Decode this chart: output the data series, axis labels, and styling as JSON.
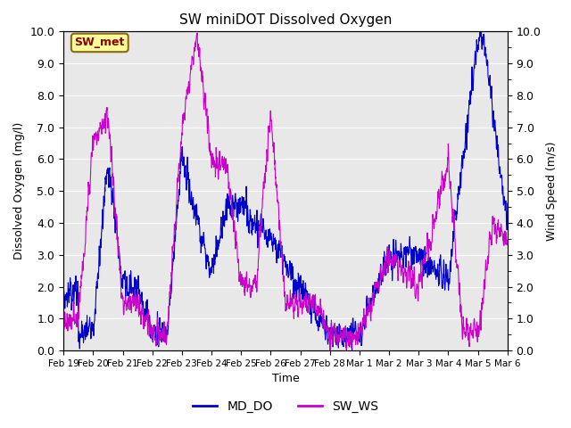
{
  "title": "SW miniDOT Dissolved Oxygen",
  "xlabel": "Time",
  "ylabel_left": "Dissolved Oxygen (mg/l)",
  "ylabel_right": "Wind Speed (m/s)",
  "ylim": [
    0.0,
    10.0
  ],
  "yticks": [
    0.0,
    1.0,
    2.0,
    3.0,
    4.0,
    5.0,
    6.0,
    7.0,
    8.0,
    9.0,
    10.0
  ],
  "xtick_labels": [
    "Feb 19",
    "Feb 20",
    "Feb 21",
    "Feb 22",
    "Feb 23",
    "Feb 24",
    "Feb 25",
    "Feb 26",
    "Feb 27",
    "Feb 28",
    "Mar 1",
    "Mar 2",
    "Mar 3",
    "Mar 4",
    "Mar 5",
    "Mar 6"
  ],
  "bg_color": "#e8e8e8",
  "fig_color": "#ffffff",
  "line_MD_DO_color": "#0000cc",
  "line_SW_WS_color": "#cc00cc",
  "legend_labels": [
    "MD_DO",
    "SW_WS"
  ],
  "annotation_text": "SW_met",
  "annotation_bg": "#ffff99",
  "annotation_fg": "#8b0000",
  "annotation_border": "#8b6914",
  "n_points": 2000,
  "n_days": 15
}
